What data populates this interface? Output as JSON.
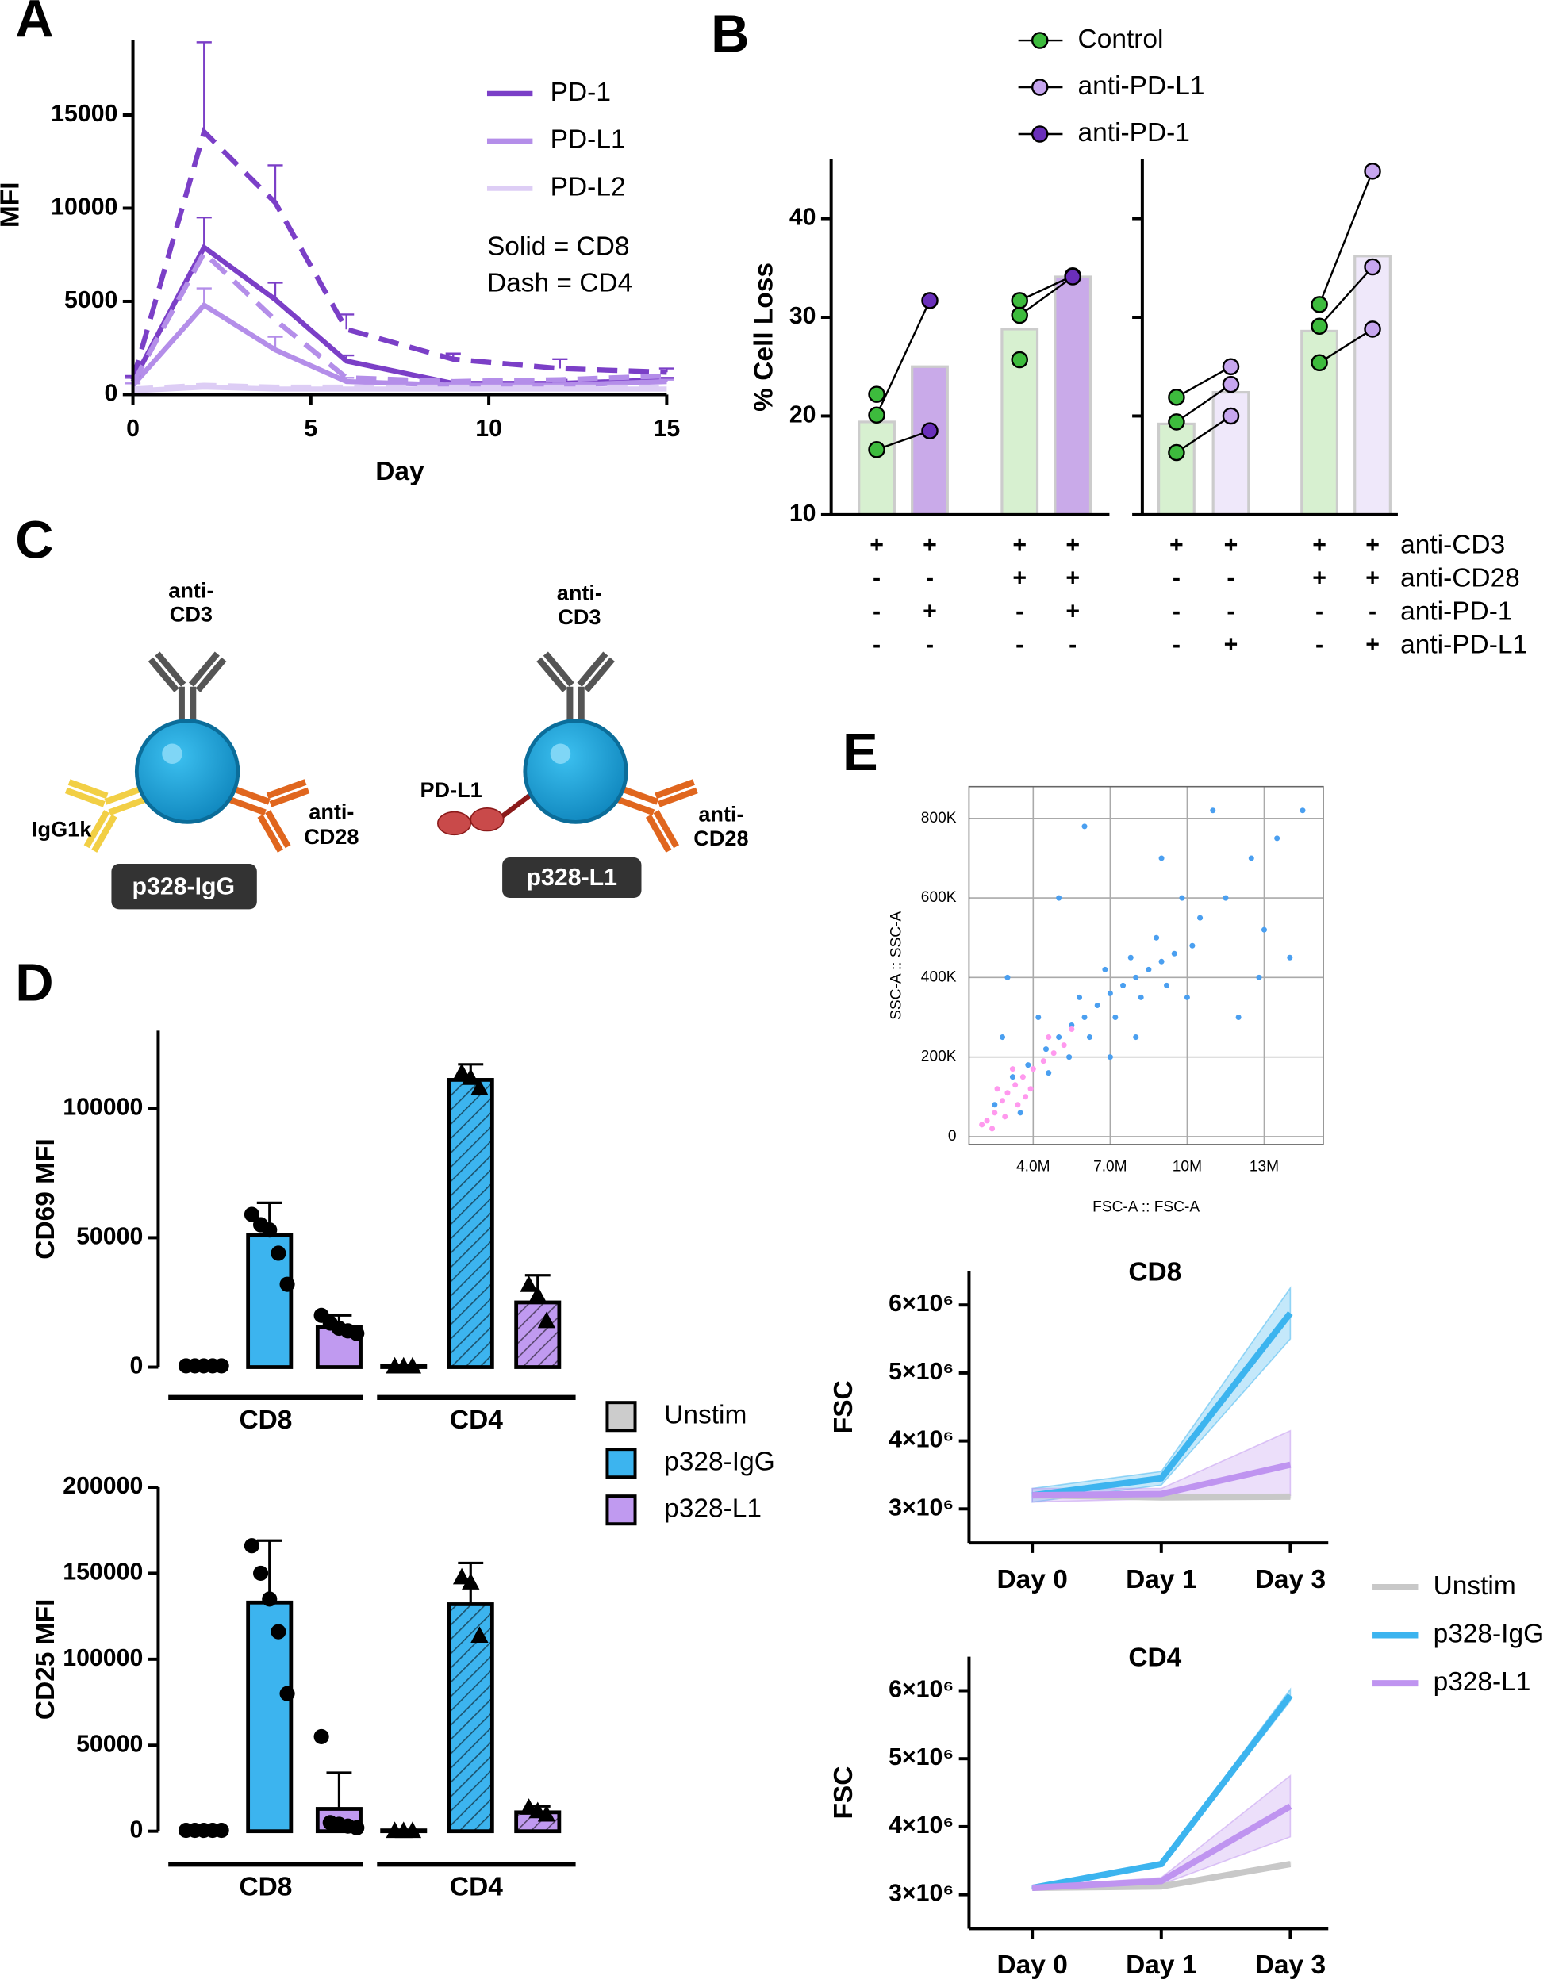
{
  "chart_data": [
    {
      "type": "line",
      "panel": "A",
      "xlabel": "Day",
      "ylabel": "MFI",
      "x": [
        0,
        2,
        4,
        6,
        9,
        12,
        15
      ],
      "xlim": [
        0,
        15
      ],
      "xticks": [
        0,
        5,
        10,
        15
      ],
      "ylim": [
        0,
        19000
      ],
      "yticks": [
        0,
        5000,
        10000,
        15000
      ],
      "annotations": [
        "Solid = CD8",
        "Dash =  CD4"
      ],
      "series": [
        {
          "name": "PD-1",
          "color": "#7b3fc7",
          "values": [
            700,
            7900,
            5100,
            1800,
            600,
            600,
            800
          ],
          "errors": [
            200,
            1600,
            900,
            300,
            100,
            200,
            100
          ]
        },
        {
          "name": "PD-L1",
          "color": "#b48ee9",
          "values": [
            500,
            4800,
            2400,
            700,
            500,
            500,
            700
          ],
          "errors": [
            100,
            900,
            700,
            200,
            100,
            100,
            100
          ]
        },
        {
          "name": "PD-L2",
          "color": "#ddcdf5",
          "values": [
            200,
            400,
            300,
            300,
            300,
            300,
            300
          ]
        },
        {
          "color": "#7b3fc7",
          "dash": true,
          "values": [
            800,
            14100,
            10300,
            3500,
            1900,
            1400,
            1200
          ],
          "errors": [
            200,
            4800,
            2000,
            800,
            300,
            500,
            200
          ]
        },
        {
          "color": "#b48ee9",
          "dash": true,
          "values": [
            600,
            7600,
            4000,
            900,
            700,
            800,
            1000
          ]
        },
        {
          "color": "#ddcdf5",
          "dash": true,
          "values": [
            300,
            500,
            400,
            400,
            400,
            400,
            400
          ]
        }
      ]
    },
    {
      "type": "paired-bar",
      "panel": "B",
      "ylabel": "% Cell Loss",
      "ylim": [
        10,
        46
      ],
      "yticks": [
        10,
        20,
        30,
        40
      ],
      "legend": [
        {
          "name": "Control",
          "color": "#3dbb3d"
        },
        {
          "name": "anti-PD-L1",
          "color": "#c7a6ef"
        },
        {
          "name": "anti-PD-1",
          "color": "#6a2fba"
        }
      ],
      "panels": [
        {
          "bars": [
            {
              "value": 19.4,
              "color": "#d7f0d0",
              "point_color": "#3dbb3d",
              "points": [
                20.1,
                16.6,
                22.2
              ]
            },
            {
              "value": 25,
              "color": "#c9aae9",
              "point_color": "#6a2fba",
              "points": [
                31.7,
                18.5
              ]
            },
            {
              "value": 28.8,
              "color": "#d7f0d0",
              "point_color": "#3dbb3d",
              "points": [
                31.7,
                30.2,
                25.7
              ]
            },
            {
              "value": 34.1,
              "color": "#c9aae9",
              "point_color": "#6a2fba",
              "points": [
                34.2,
                34.1
              ]
            }
          ]
        },
        {
          "bars": [
            {
              "value": 19.2,
              "color": "#d7f0d0",
              "point_color": "#3dbb3d",
              "points": [
                21.9,
                19.4,
                16.3
              ]
            },
            {
              "value": 22.4,
              "color": "#efe8fa",
              "point_color": "#c7a6ef",
              "points": [
                25,
                23.2,
                20
              ]
            },
            {
              "value": 28.6,
              "color": "#d7f0d0",
              "point_color": "#3dbb3d",
              "points": [
                31.3,
                29.1,
                25.4
              ]
            },
            {
              "value": 36.2,
              "color": "#efe8fa",
              "point_color": "#c7a6ef",
              "points": [
                44.8,
                35.1,
                28.8
              ]
            }
          ]
        }
      ],
      "conditions": [
        {
          "label": "anti-CD3",
          "marks": [
            "+",
            "+",
            "+",
            "+",
            "+",
            "+",
            "+",
            "+"
          ]
        },
        {
          "label": "anti-CD28",
          "marks": [
            "-",
            "-",
            "+",
            "+",
            "-",
            "-",
            "+",
            "+"
          ]
        },
        {
          "label": "anti-PD-1",
          "marks": [
            "-",
            "+",
            "-",
            "+",
            "-",
            "-",
            "-",
            "-"
          ]
        },
        {
          "label": "anti-PD-L1",
          "marks": [
            "-",
            "-",
            "-",
            "-",
            "-",
            "+",
            "-",
            "+"
          ]
        }
      ]
    },
    {
      "type": "dot-bar",
      "panel": "D",
      "ylabel": "CD69 MFI",
      "categories": [
        "CD8",
        "CD4"
      ],
      "hatch": [
        false,
        true
      ],
      "markers": [
        "circle",
        "triangle"
      ],
      "ylim": [
        0,
        130000
      ],
      "yticks": [
        0,
        50000,
        100000
      ],
      "series": [
        {
          "name": "Unstim",
          "color": "#cccccc",
          "values": [
            500,
            500
          ],
          "errors": [
            0,
            0
          ],
          "points": [
            [
              500,
              500,
              500,
              500,
              500
            ],
            [
              500,
              500,
              500
            ]
          ]
        },
        {
          "name": "p328-IgG",
          "color": "#3cb4ef",
          "values": [
            51000,
            111000
          ],
          "errors": [
            12500,
            6000
          ],
          "points": [
            [
              59000,
              55000,
              53000,
              44000,
              32000
            ],
            [
              114000,
              112000,
              108000
            ]
          ]
        },
        {
          "name": "p328-L1",
          "color": "#c09af0",
          "values": [
            15500,
            25000
          ],
          "errors": [
            4500,
            10500
          ],
          "points": [
            [
              20000,
              17000,
              15000,
              14000,
              13000
            ],
            [
              32000,
              28000,
              18000
            ]
          ]
        }
      ]
    },
    {
      "type": "dot-bar",
      "ylabel": "CD25  MFI",
      "categories": [
        "CD8",
        "CD4"
      ],
      "hatch": [
        false,
        true
      ],
      "markers": [
        "circle",
        "triangle"
      ],
      "ylim": [
        0,
        200000
      ],
      "yticks": [
        0,
        50000,
        100000,
        150000,
        200000
      ],
      "series": [
        {
          "color": "#cccccc",
          "values": [
            500,
            500
          ],
          "errors": [
            0,
            0
          ],
          "points": [
            [
              500,
              500,
              500,
              500,
              500
            ],
            [
              500,
              500,
              500
            ]
          ]
        },
        {
          "color": "#3cb4ef",
          "values": [
            133000,
            132000
          ],
          "errors": [
            36000,
            24000
          ],
          "points": [
            [
              166000,
              150000,
              135000,
              116000,
              80000
            ],
            [
              148000,
              145000,
              114000
            ]
          ]
        },
        {
          "color": "#c09af0",
          "values": [
            13000,
            11000
          ],
          "errors": [
            21000,
            3500
          ],
          "points": [
            [
              55000,
              5000,
              4000,
              3000,
              2000
            ],
            [
              14000,
              12000,
              10000
            ]
          ]
        }
      ]
    },
    {
      "type": "scatter",
      "panel": "E",
      "xlabel": "FSC-A :: FSC-A",
      "ylabel": "SSC-A :: SSC-A",
      "grid": true,
      "xlim": [
        1500000,
        15300000
      ],
      "ylim": [
        -20000,
        880000
      ],
      "xticks": [
        {
          "value": 4000000,
          "label": "4.0M"
        },
        {
          "value": 7000000,
          "label": "7.0M"
        },
        {
          "value": 10000000,
          "label": "10M"
        },
        {
          "value": 13000000,
          "label": "13M"
        }
      ],
      "yticks": [
        0,
        {
          "value": 200000,
          "label": "200K"
        },
        {
          "value": 400000,
          "label": "400K"
        },
        {
          "value": 600000,
          "label": "600K"
        },
        {
          "value": 800000,
          "label": "800K"
        }
      ],
      "series": [
        {
          "color": "#4a9ff0",
          "x": [
            3200000,
            3800000,
            4500000,
            5000000,
            5500000,
            6000000,
            6500000,
            7000000,
            7500000,
            8000000,
            8500000,
            9000000,
            9500000,
            10200000,
            6200000,
            7200000,
            8200000,
            9200000,
            5400000,
            4600000,
            6800000,
            7800000,
            8800000,
            10500000,
            11500000,
            12500000,
            13500000,
            14500000,
            3000000,
            5000000,
            9000000,
            12000000,
            14000000,
            2500000,
            3500000,
            11000000,
            6000000,
            13000000,
            8000000,
            7000000,
            10000000,
            5800000,
            4200000,
            2800000,
            9800000,
            12800000
          ],
          "y": [
            150000,
            180000,
            220000,
            250000,
            280000,
            300000,
            330000,
            360000,
            380000,
            400000,
            420000,
            440000,
            460000,
            480000,
            250000,
            300000,
            350000,
            380000,
            200000,
            160000,
            420000,
            450000,
            500000,
            550000,
            600000,
            700000,
            750000,
            820000,
            400000,
            600000,
            700000,
            300000,
            450000,
            80000,
            60000,
            820000,
            780000,
            520000,
            250000,
            200000,
            350000,
            350000,
            300000,
            250000,
            600000,
            400000
          ]
        },
        {
          "color": "#ff99ee",
          "x": [
            2200000,
            2500000,
            2800000,
            3000000,
            3300000,
            3600000,
            4000000,
            4400000,
            4800000,
            5200000,
            2400000,
            2900000,
            3400000,
            3900000,
            2600000,
            3200000,
            4600000,
            5500000,
            2000000,
            3700000
          ],
          "y": [
            40000,
            60000,
            90000,
            110000,
            130000,
            150000,
            170000,
            190000,
            210000,
            230000,
            20000,
            50000,
            80000,
            120000,
            120000,
            170000,
            250000,
            270000,
            30000,
            100000
          ]
        }
      ]
    },
    {
      "type": "band-line",
      "title": "CD8",
      "ylabel": "FSC",
      "categories": [
        "Day 0",
        "Day 1",
        "Day 3"
      ],
      "ylim": [
        2500000,
        6500000
      ],
      "yticks": [
        {
          "value": 3000000,
          "label": "3×10⁶"
        },
        {
          "value": 4000000,
          "label": "4×10⁶"
        },
        {
          "value": 5000000,
          "label": "5×10⁶"
        },
        {
          "value": 6000000,
          "label": "6×10⁶"
        }
      ],
      "series": [
        {
          "name": "Unstim",
          "color": "#c8c8c8",
          "values": [
            3200000,
            3170000,
            3180000
          ],
          "lower": [
            3180000,
            3150000,
            3160000
          ],
          "upper": [
            3220000,
            3190000,
            3200000
          ]
        },
        {
          "name": "p328-IgG",
          "color": "#3cb4ef",
          "values": [
            3200000,
            3450000,
            5880000
          ],
          "lower": [
            3100000,
            3350000,
            5500000
          ],
          "upper": [
            3300000,
            3550000,
            6250000
          ]
        },
        {
          "name": "p328-L1",
          "color": "#bf94f0",
          "values": [
            3200000,
            3220000,
            3650000
          ],
          "lower": [
            3100000,
            3150000,
            3200000
          ],
          "upper": [
            3300000,
            3300000,
            4150000
          ]
        }
      ]
    },
    {
      "type": "band-line",
      "title": "CD4",
      "ylabel": "FSC",
      "categories": [
        "Day 0",
        "Day 1",
        "Day 3"
      ],
      "ylim": [
        2500000,
        6500000
      ],
      "yticks": [
        {
          "value": 3000000,
          "label": "3×10⁶"
        },
        {
          "value": 4000000,
          "label": "4×10⁶"
        },
        {
          "value": 5000000,
          "label": "5×10⁶"
        },
        {
          "value": 6000000,
          "label": "6×10⁶"
        }
      ],
      "series": [
        {
          "color": "#c8c8c8",
          "values": [
            3100000,
            3120000,
            3450000
          ],
          "lower": [
            3090000,
            3100000,
            3420000
          ],
          "upper": [
            3110000,
            3140000,
            3480000
          ]
        },
        {
          "color": "#3cb4ef",
          "values": [
            3100000,
            3450000,
            5930000
          ],
          "lower": [
            3090000,
            3420000,
            5850000
          ],
          "upper": [
            3110000,
            3480000,
            6020000
          ]
        },
        {
          "color": "#bf94f0",
          "values": [
            3100000,
            3200000,
            4300000
          ],
          "lower": [
            3080000,
            3150000,
            3850000
          ],
          "upper": [
            3120000,
            3250000,
            4750000
          ]
        }
      ]
    }
  ],
  "diagram": {
    "panel": "C",
    "cells": [
      {
        "top_label": [
          "anti-",
          "CD3"
        ],
        "left_label": "IgG1k",
        "right_label": [
          "anti-",
          "CD28"
        ],
        "name": "p328-IgG"
      },
      {
        "top_label": [
          "anti-",
          "CD3"
        ],
        "left_label": "PD-L1",
        "right_label": [
          "anti-",
          "CD28"
        ],
        "name": "p328-L1"
      }
    ]
  }
}
